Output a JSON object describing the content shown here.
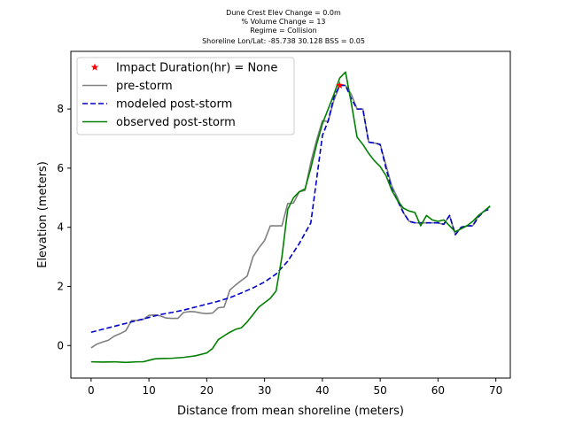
{
  "chart_data": {
    "type": "line",
    "title_lines": [
      "Dune Crest Elev Change = 0.0m",
      "% Volume Change = 13",
      "Regime = Collision",
      "Shoreline Lon/Lat: -85.738 30.128   BSS = 0.05"
    ],
    "xlabel": "Distance from mean shoreline (meters)",
    "ylabel": "Elevation (meters)",
    "xlim": [
      -3.5,
      72.5
    ],
    "ylim": [
      -1.1,
      9.95
    ],
    "xticks": [
      0,
      10,
      20,
      30,
      40,
      50,
      60,
      70
    ],
    "yticks": [
      0,
      2,
      4,
      6,
      8
    ],
    "grid": false,
    "legend_position": "top-left",
    "series": [
      {
        "name": "Impact Duration(hr) = None",
        "kind": "marker",
        "color": "#ff0000",
        "x": [
          43.0
        ],
        "y": [
          8.8
        ]
      },
      {
        "name": "pre-storm",
        "kind": "line",
        "color": "#808080",
        "dash": "none",
        "x": [
          0,
          1,
          2,
          3,
          4,
          5,
          6,
          7,
          8,
          9,
          10,
          11,
          12,
          13,
          14,
          15,
          16,
          17,
          18,
          19,
          20,
          21,
          22,
          23,
          24,
          25,
          26,
          27,
          28,
          29,
          30,
          31,
          32,
          33,
          34,
          35,
          36,
          37,
          38,
          39,
          40,
          41,
          42,
          43,
          44,
          45,
          46,
          47,
          48,
          49,
          50,
          51,
          52,
          53,
          54,
          55,
          56,
          57,
          58,
          59,
          60,
          61,
          62,
          63,
          64,
          65,
          66,
          67,
          68,
          69
        ],
        "y": [
          -0.08,
          0.05,
          0.12,
          0.18,
          0.32,
          0.4,
          0.5,
          0.85,
          0.85,
          0.88,
          1.02,
          1.04,
          1.0,
          0.93,
          0.92,
          0.92,
          1.12,
          1.15,
          1.14,
          1.1,
          1.08,
          1.1,
          1.28,
          1.3,
          1.88,
          2.05,
          2.2,
          2.35,
          3.0,
          3.3,
          3.55,
          4.05,
          4.05,
          4.05,
          4.8,
          4.82,
          5.2,
          5.25,
          6.2,
          6.95,
          7.6,
          7.58,
          8.3,
          8.8,
          8.8,
          8.5,
          8.0,
          8.0,
          6.88,
          6.85,
          6.8,
          6.1,
          5.4,
          5.0,
          4.5,
          4.2,
          4.15,
          4.15,
          4.15,
          4.15,
          4.15,
          4.1,
          4.4,
          3.75,
          4.0,
          4.05,
          4.05,
          4.4,
          4.55,
          4.7
        ]
      },
      {
        "name": "modeled post-storm",
        "kind": "line",
        "color": "#0000cc",
        "dash": "6,3",
        "x": [
          0,
          2,
          4,
          6,
          8,
          10,
          12,
          14,
          16,
          18,
          20,
          22,
          24,
          26,
          28,
          30,
          32,
          34,
          36,
          38,
          40,
          41,
          42,
          43,
          44,
          45,
          46,
          47,
          48,
          49,
          50,
          51,
          52,
          53,
          54,
          55,
          56,
          57,
          58,
          59,
          60,
          61,
          62,
          63,
          64,
          65,
          66,
          67,
          68,
          69
        ],
        "y": [
          0.45,
          0.55,
          0.65,
          0.75,
          0.85,
          0.95,
          1.05,
          1.12,
          1.2,
          1.3,
          1.4,
          1.5,
          1.62,
          1.78,
          1.95,
          2.15,
          2.42,
          2.85,
          3.45,
          4.15,
          7.1,
          7.6,
          8.4,
          8.8,
          8.8,
          8.35,
          8.0,
          8.0,
          6.88,
          6.85,
          6.8,
          6.0,
          5.3,
          4.9,
          4.5,
          4.2,
          4.15,
          4.15,
          4.15,
          4.15,
          4.15,
          4.1,
          4.4,
          3.75,
          4.0,
          4.05,
          4.05,
          4.35,
          4.55,
          4.62
        ]
      },
      {
        "name": "observed post-storm",
        "kind": "line",
        "color": "#008000",
        "dash": "none",
        "x": [
          0,
          2,
          4,
          6,
          8,
          9,
          10,
          11,
          12,
          14,
          16,
          18,
          20,
          21,
          22,
          23,
          24,
          25,
          26,
          27,
          28,
          29,
          30,
          31,
          32,
          33,
          34,
          35,
          36,
          37,
          38,
          39,
          40,
          41,
          42,
          43,
          44,
          45,
          46,
          47,
          48,
          49,
          50,
          51,
          52,
          53,
          54,
          55,
          56,
          57,
          58,
          59,
          60,
          61,
          62,
          63,
          64,
          65,
          66,
          67,
          68,
          69
        ],
        "y": [
          -0.55,
          -0.56,
          -0.55,
          -0.57,
          -0.55,
          -0.55,
          -0.5,
          -0.45,
          -0.44,
          -0.43,
          -0.4,
          -0.35,
          -0.25,
          -0.1,
          0.2,
          0.33,
          0.45,
          0.55,
          0.6,
          0.8,
          1.05,
          1.3,
          1.45,
          1.6,
          1.85,
          3.0,
          4.6,
          5.0,
          5.2,
          5.3,
          6.0,
          6.8,
          7.5,
          8.0,
          8.5,
          9.05,
          9.25,
          8.2,
          7.05,
          6.8,
          6.5,
          6.25,
          6.05,
          5.75,
          5.25,
          4.9,
          4.65,
          4.55,
          4.5,
          4.05,
          4.4,
          4.25,
          4.2,
          4.25,
          4.05,
          3.85,
          3.95,
          4.05,
          4.2,
          4.4,
          4.55,
          4.72
        ]
      }
    ]
  }
}
